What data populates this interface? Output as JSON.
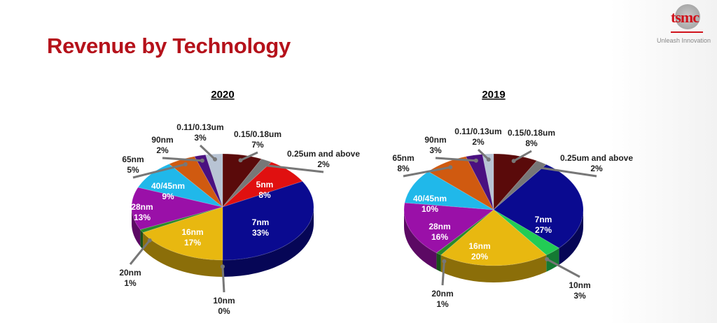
{
  "title": "Revenue by Technology",
  "logo": {
    "text": "tsmc",
    "tagline": "Unleash Innovation"
  },
  "chart_data": [
    {
      "type": "pie",
      "title": "2020",
      "unit": "%",
      "slices": [
        {
          "label": "0.15/0.18um",
          "value": 7,
          "color": "#5a0a0a"
        },
        {
          "label": "0.25um and above",
          "value": 2,
          "color": "#777777"
        },
        {
          "label": "5nm",
          "value": 8,
          "color": "#e01010"
        },
        {
          "label": "7nm",
          "value": 33,
          "color": "#0a0a90"
        },
        {
          "label": "10nm",
          "value": 0,
          "color": "#22cc55"
        },
        {
          "label": "16nm",
          "value": 17,
          "color": "#e8b810"
        },
        {
          "label": "20nm",
          "value": 1,
          "color": "#2a8a2a"
        },
        {
          "label": "28nm",
          "value": 13,
          "color": "#9a10a8"
        },
        {
          "label": "40/45nm",
          "value": 9,
          "color": "#20b8ea"
        },
        {
          "label": "65nm",
          "value": 5,
          "color": "#d05a10"
        },
        {
          "label": "90nm",
          "value": 2,
          "color": "#4a1080"
        },
        {
          "label": "0.11/0.13um",
          "value": 3,
          "color": "#b8c4d4"
        }
      ]
    },
    {
      "type": "pie",
      "title": "2019",
      "unit": "%",
      "slices": [
        {
          "label": "0.15/0.18um",
          "value": 8,
          "color": "#5a0a0a"
        },
        {
          "label": "0.25um and above",
          "value": 2,
          "color": "#777777"
        },
        {
          "label": "7nm",
          "value": 27,
          "color": "#0a0a90"
        },
        {
          "label": "10nm",
          "value": 3,
          "color": "#22cc55"
        },
        {
          "label": "16nm",
          "value": 20,
          "color": "#e8b810"
        },
        {
          "label": "20nm",
          "value": 1,
          "color": "#2a8a2a"
        },
        {
          "label": "28nm",
          "value": 16,
          "color": "#9a10a8"
        },
        {
          "label": "40/45nm",
          "value": 10,
          "color": "#20b8ea"
        },
        {
          "label": "65nm",
          "value": 8,
          "color": "#d05a10"
        },
        {
          "label": "90nm",
          "value": 3,
          "color": "#4a1080"
        },
        {
          "label": "0.11/0.13um",
          "value": 2,
          "color": "#b8c4d4"
        }
      ]
    }
  ]
}
